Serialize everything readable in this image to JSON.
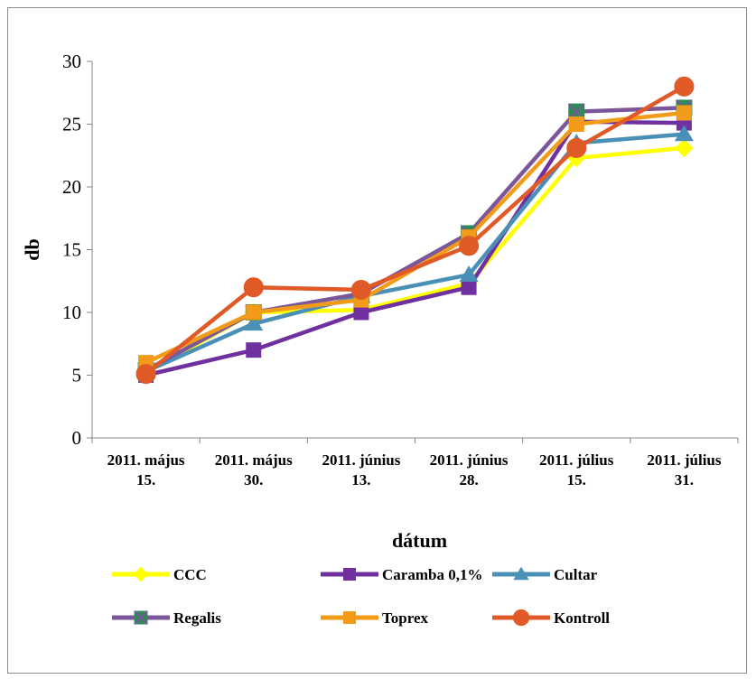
{
  "chart_data": {
    "type": "line",
    "title": "",
    "xlabel": "dátum",
    "ylabel": "db",
    "ylim": [
      0,
      30
    ],
    "yticks": [
      0,
      5,
      10,
      15,
      20,
      25,
      30
    ],
    "categories": [
      [
        "2011. május",
        "15."
      ],
      [
        "2011. május",
        "30."
      ],
      [
        "2011. június",
        "13."
      ],
      [
        "2011. június",
        "28."
      ],
      [
        "2011. július",
        "15."
      ],
      [
        "2011. július",
        "31."
      ]
    ],
    "grid": false,
    "legend_position": "bottom",
    "series": [
      {
        "name": "CCC",
        "color": "#ffff00",
        "marker": "diamond",
        "values": [
          5.2,
          10,
          10.2,
          12.3,
          22.3,
          23.1
        ]
      },
      {
        "name": "Caramba 0,1%",
        "color": "#7030a0",
        "marker": "square",
        "values": [
          5,
          7,
          10,
          12,
          25.2,
          25.1
        ]
      },
      {
        "name": "Cultar",
        "color": "#4a8fb5",
        "marker": "triangle",
        "values": [
          5.3,
          9.1,
          11.3,
          13,
          23.5,
          24.2
        ]
      },
      {
        "name": "Regalis",
        "color": "#7b569b",
        "marker": "square-x",
        "values": [
          5.4,
          10,
          11.5,
          16.3,
          26,
          26.3
        ]
      },
      {
        "name": "Toprex",
        "color": "#f29b18",
        "marker": "square",
        "values": [
          6,
          10,
          11,
          16,
          25,
          25.9
        ]
      },
      {
        "name": "Kontroll",
        "color": "#e05a28",
        "marker": "circle",
        "values": [
          5.1,
          12,
          11.8,
          15.3,
          23.1,
          28
        ]
      }
    ]
  }
}
